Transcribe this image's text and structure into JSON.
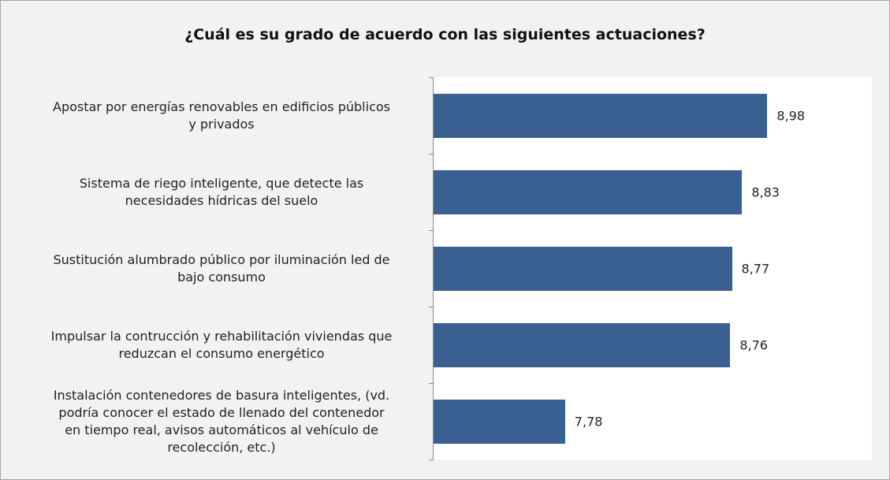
{
  "chart_data": {
    "type": "bar",
    "orientation": "horizontal",
    "title": "¿Cuál es su grado de acuerdo con las siguientes actuaciones?",
    "categories": [
      "Apostar por energías renovables en edificios públicos\ny privados",
      "Sistema de riego inteligente, que detecte las\nnecesidades hídricas del suelo",
      "Sustitución alumbrado público por iluminación led de\nbajo consumo",
      "Impulsar la contrucción y rehabilitación viviendas que\nreduzcan el consumo energético",
      "Instalación contenedores de basura inteligentes, (vd.\npodría conocer el estado de llenado del contenedor\nen tiempo real, avisos automáticos al vehículo de\nrecolección, etc.)"
    ],
    "values": [
      8.98,
      8.83,
      8.77,
      8.76,
      7.78
    ],
    "value_labels": [
      "8,98",
      "8,83",
      "8,77",
      "8,76",
      "7,78"
    ],
    "color": "#3a6092",
    "xlim": [
      7,
      9.6
    ]
  }
}
